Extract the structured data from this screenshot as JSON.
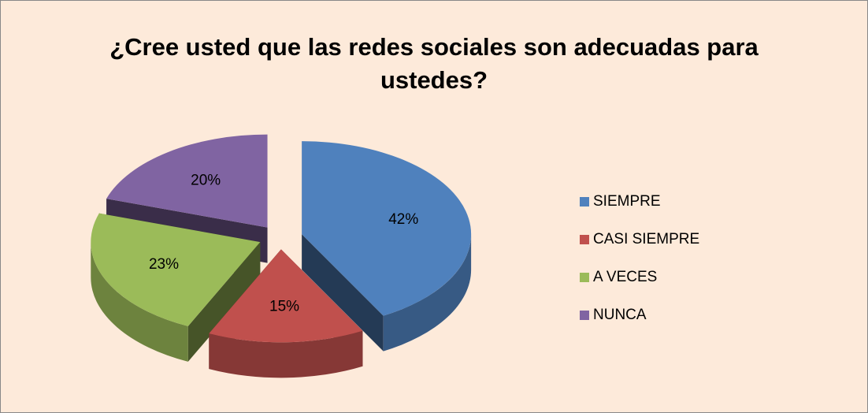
{
  "chart_data": {
    "type": "pie",
    "title": "¿Cree usted que las redes sociales son adecuadas para ustedes?",
    "categories": [
      "SIEMPRE",
      "CASI SIEMPRE",
      "A VECES",
      "NUNCA"
    ],
    "values": [
      42,
      15,
      23,
      20
    ],
    "value_labels": [
      "42%",
      "15%",
      "23%",
      "20%"
    ],
    "colors": [
      "#4f81bd",
      "#c0504d",
      "#9bbb59",
      "#8064a2"
    ],
    "legend": "right"
  }
}
